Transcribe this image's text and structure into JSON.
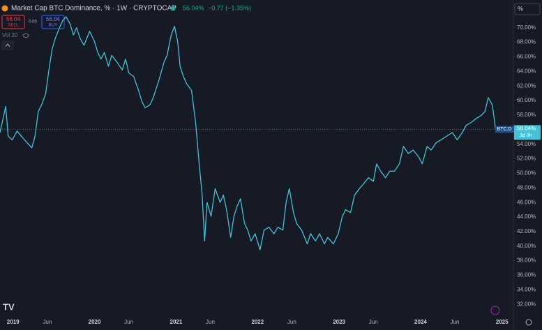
{
  "header": {
    "title": "Market Cap BTC Dominance, % · 1W · CRYPTOCAP",
    "price": "56.04%",
    "change": "−0.77 (−1.35%)",
    "sell_price": "56.04",
    "sell": "SELL",
    "spread": "0.00",
    "buy_price": "56.04",
    "buy": "BUY",
    "volume": "Vol 20",
    "scale_mode": "%"
  },
  "chart_data": {
    "type": "line",
    "x": [
      2018.84,
      2018.91,
      2018.94,
      2018.99,
      2019.05,
      2019.14,
      2019.23,
      2019.27,
      2019.31,
      2019.35,
      2019.4,
      2019.44,
      2019.48,
      2019.52,
      2019.57,
      2019.61,
      2019.65,
      2019.7,
      2019.74,
      2019.78,
      2019.82,
      2019.87,
      2019.94,
      2020.0,
      2020.04,
      2020.08,
      2020.12,
      2020.17,
      2020.21,
      2020.28,
      2020.34,
      2020.38,
      2020.42,
      2020.48,
      2020.54,
      2020.58,
      2020.62,
      2020.68,
      2020.72,
      2020.79,
      2020.85,
      2020.89,
      2020.94,
      2020.98,
      2021.02,
      2021.05,
      2021.09,
      2021.13,
      2021.19,
      2021.24,
      2021.28,
      2021.32,
      2021.35,
      2021.38,
      2021.43,
      2021.48,
      2021.54,
      2021.58,
      2021.62,
      2021.67,
      2021.71,
      2021.75,
      2021.79,
      2021.84,
      2021.88,
      2021.92,
      2021.97,
      2022.03,
      2022.08,
      2022.14,
      2022.2,
      2022.25,
      2022.31,
      2022.35,
      2022.39,
      2022.44,
      2022.48,
      2022.54,
      2022.61,
      2022.65,
      2022.71,
      2022.76,
      2022.82,
      2022.86,
      2022.93,
      2022.99,
      2023.04,
      2023.08,
      2023.14,
      2023.19,
      2023.25,
      2023.29,
      2023.36,
      2023.42,
      2023.46,
      2023.51,
      2023.57,
      2023.62,
      2023.68,
      2023.74,
      2023.79,
      2023.85,
      2023.91,
      2023.98,
      2024.02,
      2024.08,
      2024.13,
      2024.19,
      2024.25,
      2024.32,
      2024.39,
      2024.45,
      2024.51,
      2024.56,
      2024.62,
      2024.68,
      2024.75,
      2024.79,
      2024.83,
      2024.88,
      2024.92
    ],
    "series": [
      {
        "name": "BTC.D",
        "color": "#45c2d8",
        "values": [
          55.6,
          59.2,
          55.1,
          54.6,
          55.8,
          54.6,
          53.5,
          55.1,
          58.5,
          59.4,
          60.9,
          64.2,
          67.1,
          68.6,
          70.0,
          71.0,
          71.5,
          70.5,
          69.0,
          70.0,
          68.6,
          67.6,
          69.5,
          68.1,
          66.6,
          65.7,
          66.6,
          64.7,
          66.2,
          65.2,
          64.2,
          65.7,
          63.8,
          63.3,
          61.4,
          59.9,
          59.0,
          59.4,
          60.4,
          62.8,
          65.2,
          66.2,
          69.0,
          70.2,
          68.1,
          64.7,
          63.3,
          62.3,
          61.4,
          57.0,
          51.8,
          47.0,
          40.7,
          46.0,
          44.1,
          47.9,
          46.0,
          47.0,
          45.0,
          41.2,
          44.1,
          45.5,
          46.5,
          43.1,
          42.2,
          40.7,
          41.7,
          39.5,
          42.2,
          42.6,
          41.7,
          42.6,
          42.2,
          46.0,
          47.9,
          44.6,
          43.1,
          42.2,
          40.3,
          41.7,
          40.7,
          41.7,
          40.3,
          41.2,
          40.3,
          41.7,
          44.1,
          45.0,
          44.6,
          47.0,
          47.9,
          48.4,
          49.4,
          48.9,
          51.3,
          50.3,
          49.4,
          50.3,
          50.3,
          51.3,
          53.7,
          52.7,
          53.2,
          52.2,
          51.3,
          53.7,
          53.2,
          54.2,
          54.6,
          55.1,
          55.6,
          54.6,
          55.6,
          56.6,
          57.0,
          57.5,
          58.0,
          58.5,
          60.4,
          59.4,
          56.04
        ]
      }
    ],
    "last_value_label": "56.04%",
    "countdown": "3d 3h",
    "xlim": [
      2018.84,
      2025.13
    ],
    "xticks": [
      2019,
      {
        "value": 2019.42,
        "label": "Jun"
      },
      2020,
      {
        "value": 2020.42,
        "label": "Jun"
      },
      2021,
      {
        "value": 2021.42,
        "label": "Jun"
      },
      2022,
      {
        "value": 2022.42,
        "label": "Jun"
      },
      2023,
      {
        "value": 2023.42,
        "label": "Jun"
      },
      2024,
      {
        "value": 2024.42,
        "label": "Jun"
      },
      2025
    ],
    "ylim": [
      30.2,
      71.7
    ],
    "yticks": [
      {
        "value": 32,
        "label": "32.00%"
      },
      {
        "value": 34,
        "label": "34.00%"
      },
      {
        "value": 36,
        "label": "36.00%"
      },
      {
        "value": 38,
        "label": "38.00%"
      },
      {
        "value": 40,
        "label": "40.00%"
      },
      {
        "value": 42,
        "label": "42.00%"
      },
      {
        "value": 44,
        "label": "44.00%"
      },
      {
        "value": 46,
        "label": "46.00%"
      },
      {
        "value": 48,
        "label": "48.00%"
      },
      {
        "value": 50,
        "label": "50.00%"
      },
      {
        "value": 52,
        "label": "52.00%"
      },
      {
        "value": 54,
        "label": "54.00%"
      },
      {
        "value": 56,
        "label": "56.00%"
      },
      {
        "value": 58,
        "label": "58.00%"
      },
      {
        "value": 60,
        "label": "60.00%"
      },
      {
        "value": 62,
        "label": "62.00%"
      },
      {
        "value": 64,
        "label": "64.00%"
      },
      {
        "value": 66,
        "label": "66.00%"
      },
      {
        "value": 68,
        "label": "68.00%"
      },
      {
        "value": 70,
        "label": "70.00%"
      }
    ],
    "grid": false
  }
}
